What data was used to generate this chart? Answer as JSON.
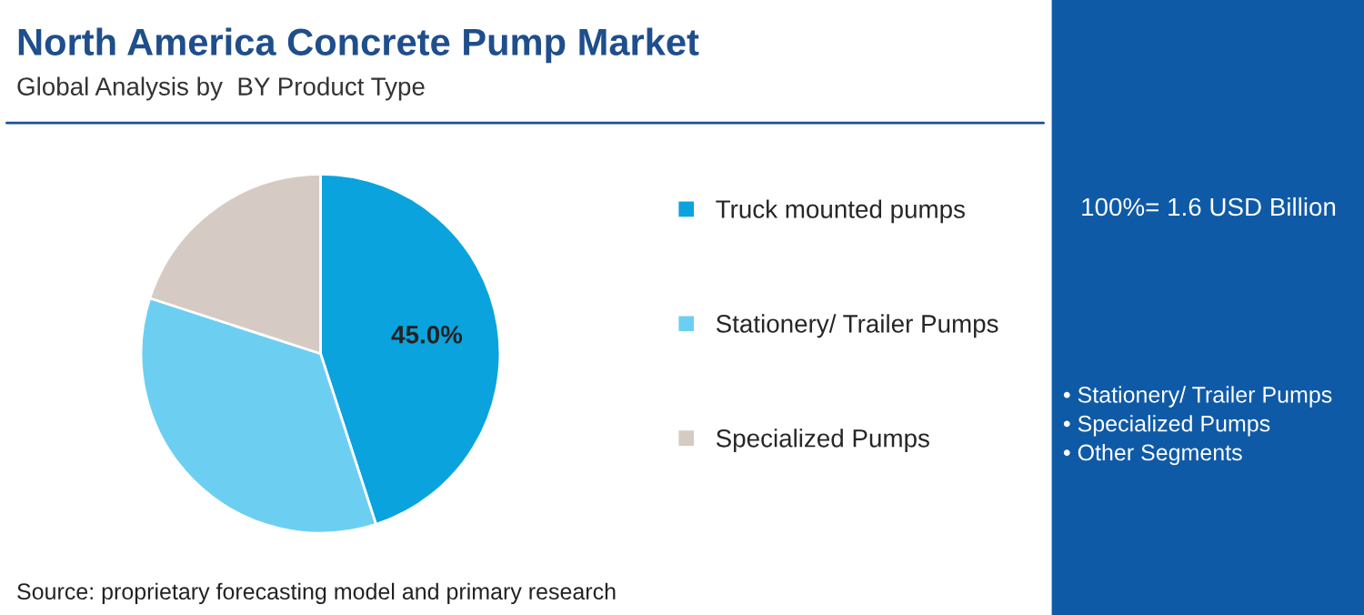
{
  "chart_data": {
    "type": "pie",
    "title": "North America Concrete Pump Market",
    "subtitle": "Global Analysis by  BY Product Type",
    "categories": [
      "Truck mounted pumps",
      "Stationery/ Trailer Pumps",
      "Specialized Pumps"
    ],
    "values": [
      45.0,
      35,
      20
    ],
    "colors": [
      "#0aa3dd",
      "#6ccff2",
      "#d6cbc4"
    ],
    "value_labels": [
      "45.0%",
      null,
      null
    ],
    "legend": "right",
    "annotations": [
      "Source: proprietary forecasting model and primary research",
      "100%= 1.6 USD Billion",
      "• Stationery/ Trailer Pumps",
      "• Specialized Pumps",
      "• Other Segments"
    ]
  }
}
